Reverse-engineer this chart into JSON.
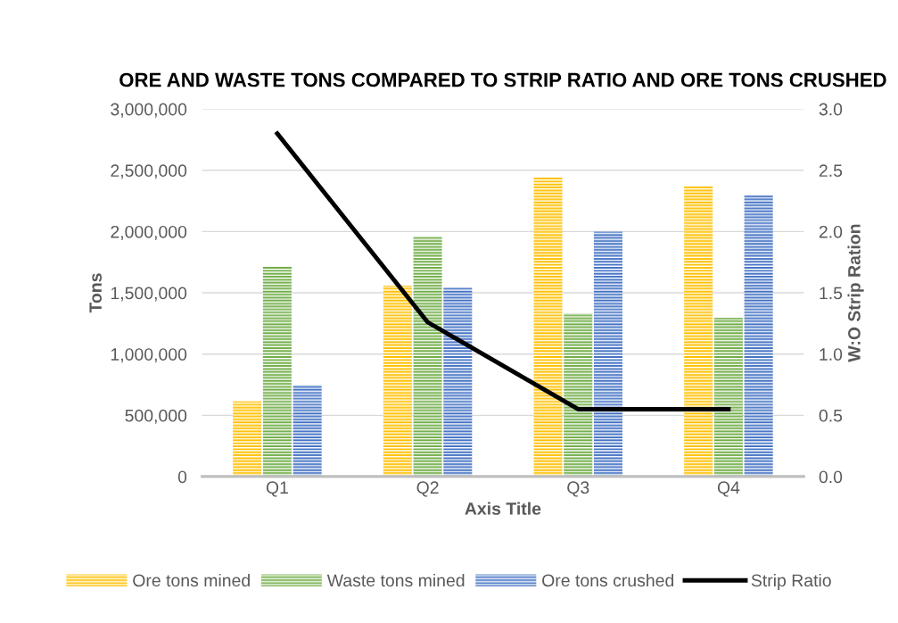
{
  "chart_data": {
    "type": "bar",
    "title": "ORE AND WASTE TONS COMPARED TO STRIP RATIO AND ORE TONS CRUSHED",
    "xlabel": "Axis Title",
    "ylabel": "Tons",
    "y2label": "W:O Strip Ration",
    "categories": [
      "Q1",
      "Q2",
      "Q3",
      "Q4"
    ],
    "series": [
      {
        "name": "Ore tons mined",
        "color": "#ffc000",
        "values": [
          615000,
          1558000,
          2442000,
          2370000
        ]
      },
      {
        "name": "Waste tons mined",
        "color": "#70ad47",
        "values": [
          1717000,
          1957000,
          1333000,
          1297000
        ]
      },
      {
        "name": "Ore tons crushed",
        "color": "#4472c4",
        "values": [
          746000,
          1543000,
          2000000,
          2297000
        ]
      },
      {
        "name": "Strip Ratio",
        "color": "#000000",
        "type": "line",
        "axis": "y2",
        "values": [
          2.8,
          1.26,
          0.55,
          0.55
        ]
      }
    ],
    "ylim": [
      0,
      3000000
    ],
    "yticks": [
      {
        "value": 0,
        "label": "0"
      },
      {
        "value": 500000,
        "label": "500,000"
      },
      {
        "value": 1000000,
        "label": "1,000,000"
      },
      {
        "value": 1500000,
        "label": "1,500,000"
      },
      {
        "value": 2000000,
        "label": "2,000,000"
      },
      {
        "value": 2500000,
        "label": "2,500,000"
      },
      {
        "value": 3000000,
        "label": "3,000,000"
      }
    ],
    "y2lim": [
      0,
      3
    ],
    "y2ticks": [
      {
        "value": 0,
        "label": "0.0"
      },
      {
        "value": 0.5,
        "label": "0.5"
      },
      {
        "value": 1,
        "label": "1.0"
      },
      {
        "value": 1.5,
        "label": "1.5"
      },
      {
        "value": 2,
        "label": "2.0"
      },
      {
        "value": 2.5,
        "label": "2.5"
      },
      {
        "value": 3,
        "label": "3.0"
      }
    ],
    "grid": "y",
    "legend": "bottom",
    "marker": "none",
    "line_style": "solid"
  }
}
